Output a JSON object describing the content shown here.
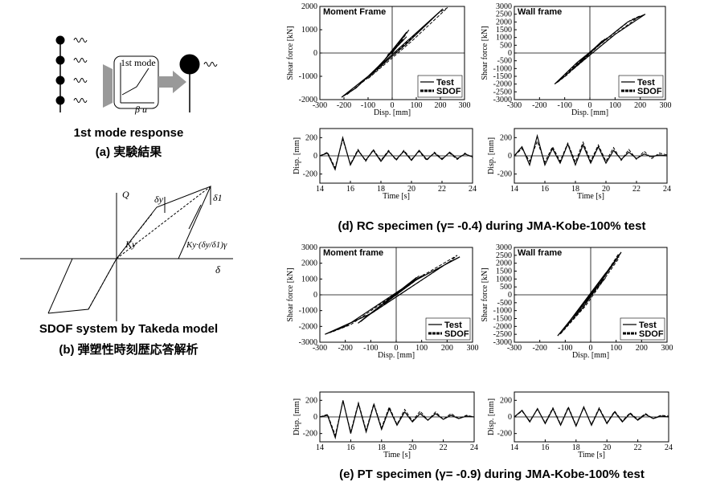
{
  "figure_a": {
    "mode_label": "1st mode",
    "axis_label": "β u",
    "title": "1st mode response",
    "caption": "(a) 実験結果"
  },
  "figure_b": {
    "q": "Q",
    "dy": "δy",
    "d1": "δ1",
    "k1": "Ky",
    "k2": "Ky·(δy/δ1)γ",
    "delta": "δ",
    "title": "SDOF system by Takeda model",
    "caption": "(b) 弾塑性時刻歴応答解析"
  },
  "captions": {
    "d": "(d) RC specimen (γ= -0.4) during JMA-Kobe-100% test",
    "e": "(e) PT specimen (γ= -0.9) during JMA-Kobe-100% test"
  },
  "chart_data": [
    {
      "type": "line",
      "title": "Moment Frame",
      "x_label": "Disp. [mm]",
      "y_label": "Shear force [kN]",
      "xlim": [
        -300,
        300
      ],
      "xticks": [
        -300,
        -200,
        -100,
        0,
        100,
        200,
        300
      ],
      "ylim": [
        -2000,
        2000
      ],
      "yticks": [
        -2000,
        -1000,
        0,
        1000,
        2000
      ],
      "legend": "lower right",
      "series": [
        {
          "name": "Test",
          "color": "#000000",
          "style": "solid",
          "x": [
            0,
            20,
            60,
            -40,
            -150,
            -210,
            -100,
            200,
            210,
            60,
            -120,
            -60,
            50,
            -20,
            0
          ],
          "values": [
            0,
            300,
            900,
            -400,
            -1500,
            -1900,
            -1000,
            1800,
            1900,
            400,
            -1200,
            -600,
            600,
            -100,
            0
          ]
        },
        {
          "name": "SDOF",
          "color": "#000000",
          "style": "dashed",
          "x": [
            0,
            30,
            70,
            -30,
            -140,
            -190,
            -80,
            190,
            230,
            80,
            -100,
            -50,
            60,
            -10,
            0
          ],
          "values": [
            0,
            400,
            1000,
            -300,
            -1400,
            -1800,
            -900,
            1700,
            1950,
            500,
            -1100,
            -500,
            700,
            0,
            0
          ]
        }
      ]
    },
    {
      "type": "line",
      "title": "Wall frame",
      "x_label": "Disp. [mm]",
      "y_label": "Shear force [kN]",
      "xlim": [
        -300,
        300
      ],
      "xticks": [
        -300,
        -200,
        -100,
        0,
        100,
        200,
        300
      ],
      "ylim": [
        -3000,
        3000
      ],
      "yticks": [
        -3000,
        -2500,
        -2000,
        -1500,
        -1000,
        -500,
        0,
        500,
        1000,
        1500,
        2000,
        2500,
        3000
      ],
      "legend": "lower right",
      "series": [
        {
          "name": "Test",
          "color": "#000000",
          "style": "solid",
          "x": [
            0,
            50,
            -100,
            -140,
            -50,
            150,
            220,
            100,
            -80,
            60,
            -40,
            0
          ],
          "values": [
            0,
            800,
            -1500,
            -2000,
            -600,
            2000,
            2500,
            1200,
            -1200,
            900,
            -500,
            0
          ]
        },
        {
          "name": "SDOF",
          "color": "#000000",
          "style": "dashed",
          "x": [
            0,
            60,
            -90,
            -130,
            -40,
            160,
            200,
            90,
            -70,
            70,
            -30,
            0
          ],
          "values": [
            0,
            900,
            -1400,
            -1900,
            -500,
            2100,
            2400,
            1100,
            -1100,
            1000,
            -400,
            0
          ]
        }
      ]
    },
    {
      "type": "line",
      "x_label": "Time [s]",
      "y_label": "Disp. [mm]",
      "xlim": [
        14,
        24
      ],
      "xticks": [
        14,
        16,
        18,
        20,
        22,
        24
      ],
      "ylim": [
        -300,
        300
      ],
      "yticks": [
        -200,
        0,
        200
      ],
      "series": [
        {
          "name": "Test",
          "color": "#000000",
          "style": "solid",
          "x": [
            14,
            14.5,
            15,
            15.5,
            16,
            16.5,
            17,
            17.5,
            18,
            18.5,
            19,
            19.5,
            20,
            20.5,
            21,
            21.5,
            22,
            22.5,
            23,
            23.5,
            24
          ],
          "values": [
            0,
            30,
            -150,
            200,
            -100,
            60,
            -50,
            60,
            -60,
            50,
            -40,
            50,
            -50,
            60,
            -40,
            30,
            -40,
            40,
            -30,
            20,
            -10
          ]
        },
        {
          "name": "SDOF",
          "color": "#000000",
          "style": "dashed",
          "x": [
            14,
            14.5,
            15,
            15.5,
            16,
            16.5,
            17,
            17.5,
            18,
            18.5,
            19,
            19.5,
            20,
            20.5,
            21,
            21.5,
            22,
            22.5,
            23,
            23.5,
            24
          ],
          "values": [
            0,
            40,
            -130,
            180,
            -90,
            70,
            -60,
            70,
            -50,
            60,
            -50,
            60,
            -40,
            50,
            -50,
            40,
            -30,
            30,
            -40,
            30,
            -20
          ]
        }
      ]
    },
    {
      "type": "line",
      "x_label": "Time [s]",
      "y_label": "Disp. [mm]",
      "xlim": [
        14,
        24
      ],
      "xticks": [
        14,
        16,
        18,
        20,
        22,
        24
      ],
      "ylim": [
        -300,
        300
      ],
      "yticks": [
        -200,
        0,
        200
      ],
      "series": [
        {
          "name": "Test",
          "color": "#000000",
          "style": "solid",
          "x": [
            14,
            14.5,
            15,
            15.5,
            16,
            16.5,
            17,
            17.5,
            18,
            18.5,
            19,
            19.5,
            20,
            20.5,
            21,
            21.5,
            22,
            22.5,
            23,
            23.5,
            24
          ],
          "values": [
            0,
            100,
            -100,
            220,
            -100,
            80,
            -80,
            130,
            -100,
            120,
            -80,
            100,
            -80,
            60,
            -40,
            40,
            -30,
            20,
            -10,
            10,
            0
          ]
        },
        {
          "name": "SDOF",
          "color": "#000000",
          "style": "dashed",
          "x": [
            14,
            14.5,
            15,
            15.5,
            16,
            16.5,
            17,
            17.5,
            18,
            18.5,
            19,
            19.5,
            20,
            20.5,
            21,
            21.5,
            22,
            22.5,
            23,
            23.5,
            24
          ],
          "values": [
            0,
            80,
            -60,
            160,
            -70,
            100,
            -60,
            140,
            -70,
            150,
            -60,
            120,
            -60,
            90,
            -50,
            70,
            -40,
            50,
            -30,
            30,
            10
          ]
        }
      ]
    },
    {
      "type": "line",
      "title": "Moment frame",
      "x_label": "Disp. [mm]",
      "y_label": "Shear force [kN]",
      "xlim": [
        -300,
        300
      ],
      "xticks": [
        -300,
        -200,
        -100,
        0,
        100,
        200,
        300
      ],
      "ylim": [
        -3000,
        3000
      ],
      "yticks": [
        -3000,
        -2000,
        -1000,
        0,
        1000,
        2000,
        3000
      ],
      "legend": "lower right",
      "series": [
        {
          "name": "Test",
          "color": "#000000",
          "style": "solid",
          "x": [
            0,
            100,
            -200,
            -280,
            -100,
            200,
            250,
            50,
            -150,
            80,
            -50,
            0
          ],
          "values": [
            0,
            1200,
            -2000,
            -2500,
            -1200,
            2000,
            2400,
            700,
            -1800,
            1100,
            -600,
            0
          ]
        },
        {
          "name": "SDOF",
          "color": "#000000",
          "style": "dashed",
          "x": [
            0,
            110,
            -180,
            -260,
            -90,
            210,
            240,
            60,
            -140,
            90,
            -40,
            0
          ],
          "values": [
            0,
            1300,
            -1900,
            -2400,
            -1100,
            2100,
            2500,
            800,
            -1700,
            1200,
            -500,
            0
          ]
        }
      ]
    },
    {
      "type": "line",
      "title": "Wall frame",
      "x_label": "Disp. [mm]",
      "y_label": "Shear force [kN]",
      "xlim": [
        -300,
        300
      ],
      "xticks": [
        -300,
        -200,
        -100,
        0,
        100,
        200,
        300
      ],
      "ylim": [
        -3000,
        3000
      ],
      "yticks": [
        -3000,
        -2500,
        -2000,
        -1500,
        -1000,
        -500,
        0,
        500,
        1000,
        1500,
        2000,
        2500,
        3000
      ],
      "legend": "lower right",
      "series": [
        {
          "name": "Test",
          "color": "#000000",
          "style": "solid",
          "x": [
            0,
            50,
            -100,
            -130,
            -30,
            100,
            120,
            20,
            -80,
            60,
            -30,
            0
          ],
          "values": [
            0,
            1000,
            -2000,
            -2600,
            -800,
            2200,
            2700,
            500,
            -1600,
            1400,
            -600,
            0
          ]
        },
        {
          "name": "SDOF",
          "color": "#000000",
          "style": "dashed",
          "x": [
            0,
            60,
            -90,
            -120,
            -20,
            110,
            110,
            30,
            -70,
            70,
            -20,
            0
          ],
          "values": [
            0,
            1100,
            -1900,
            -2500,
            -700,
            2300,
            2600,
            600,
            -1500,
            1500,
            -500,
            0
          ]
        }
      ]
    },
    {
      "type": "line",
      "x_label": "Time [s]",
      "y_label": "Disp. [mm]",
      "xlim": [
        14,
        24
      ],
      "xticks": [
        14,
        16,
        18,
        20,
        22,
        24
      ],
      "ylim": [
        -300,
        300
      ],
      "yticks": [
        -200,
        0,
        200
      ],
      "series": [
        {
          "name": "Test",
          "color": "#000000",
          "style": "solid",
          "x": [
            14,
            14.5,
            15,
            15.5,
            16,
            16.5,
            17,
            17.5,
            18,
            18.5,
            19,
            19.5,
            20,
            20.5,
            21,
            21.5,
            22,
            22.5,
            23,
            23.5,
            24
          ],
          "values": [
            0,
            20,
            -250,
            200,
            -200,
            160,
            -180,
            150,
            -150,
            100,
            -100,
            60,
            -60,
            40,
            -40,
            40,
            -30,
            20,
            -20,
            10,
            0
          ]
        },
        {
          "name": "SDOF",
          "color": "#000000",
          "style": "dashed",
          "x": [
            14,
            14.5,
            15,
            15.5,
            16,
            16.5,
            17,
            17.5,
            18,
            18.5,
            19,
            19.5,
            20,
            20.5,
            21,
            21.5,
            22,
            22.5,
            23,
            23.5,
            24
          ],
          "values": [
            0,
            30,
            -220,
            190,
            -180,
            170,
            -160,
            160,
            -130,
            120,
            -90,
            90,
            -50,
            70,
            -40,
            60,
            -30,
            40,
            -20,
            20,
            0
          ]
        }
      ]
    },
    {
      "type": "line",
      "x_label": "Time [s]",
      "y_label": "Disp. [mm]",
      "xlim": [
        14,
        24
      ],
      "xticks": [
        14,
        16,
        18,
        20,
        22,
        24
      ],
      "ylim": [
        -300,
        300
      ],
      "yticks": [
        -200,
        0,
        200
      ],
      "series": [
        {
          "name": "Test",
          "color": "#000000",
          "style": "solid",
          "x": [
            14,
            14.5,
            15,
            15.5,
            16,
            16.5,
            17,
            17.5,
            18,
            18.5,
            19,
            19.5,
            20,
            20.5,
            21,
            21.5,
            22,
            22.5,
            23,
            23.5,
            24
          ],
          "values": [
            0,
            80,
            -60,
            100,
            -80,
            100,
            -100,
            110,
            -110,
            120,
            -100,
            100,
            -80,
            60,
            -60,
            40,
            -40,
            30,
            -20,
            10,
            0
          ]
        },
        {
          "name": "SDOF",
          "color": "#000000",
          "style": "dashed",
          "x": [
            14,
            14.5,
            15,
            15.5,
            16,
            16.5,
            17,
            17.5,
            18,
            18.5,
            19,
            19.5,
            20,
            20.5,
            21,
            21.5,
            22,
            22.5,
            23,
            23.5,
            24
          ],
          "values": [
            0,
            70,
            -50,
            90,
            -70,
            110,
            -90,
            120,
            -100,
            110,
            -90,
            110,
            -70,
            70,
            -50,
            50,
            -30,
            40,
            -20,
            20,
            10
          ]
        }
      ]
    }
  ]
}
